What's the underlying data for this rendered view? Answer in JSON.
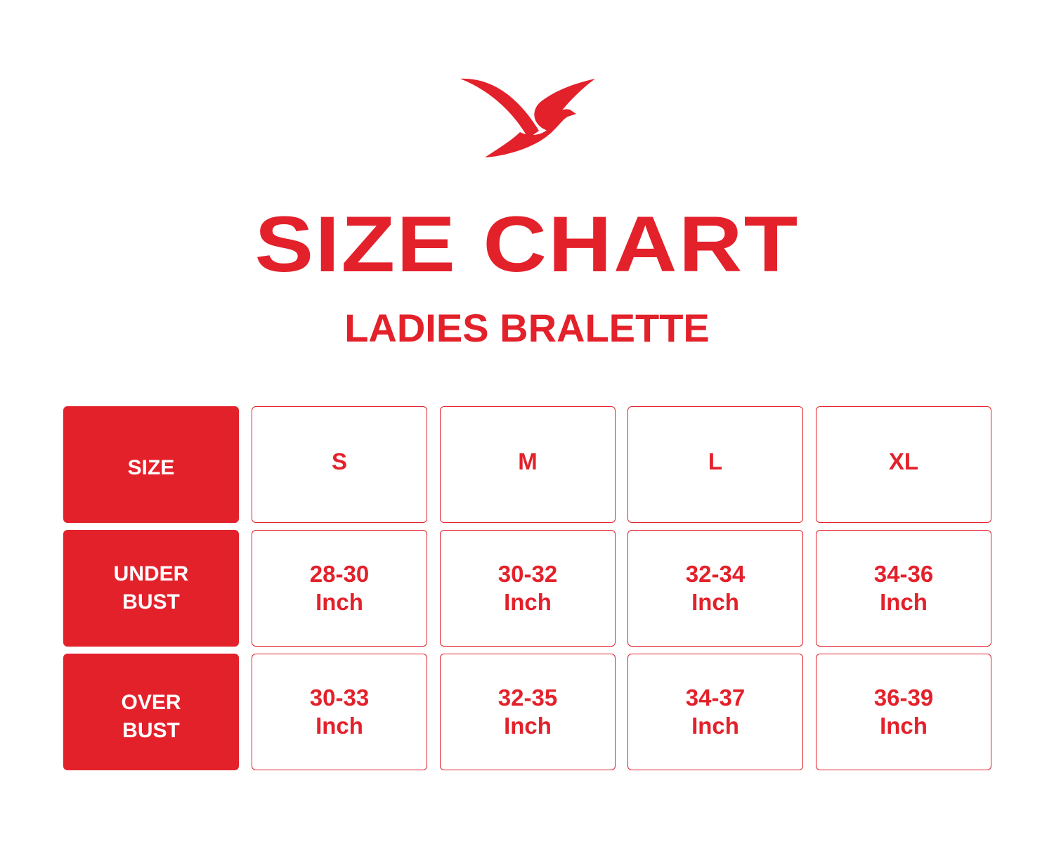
{
  "brand_color": "#e3212b",
  "logo": {
    "icon": "bird-logo"
  },
  "title": "SIZE CHART",
  "subtitle": "LADIES BRALETTE",
  "table": {
    "row_headers": [
      [
        "SIZE"
      ],
      [
        "UNDER",
        "BUST"
      ],
      [
        "OVER",
        "BUST"
      ]
    ],
    "sizes": [
      "S",
      "M",
      "L",
      "XL"
    ],
    "under_bust": [
      [
        "28-30",
        "Inch"
      ],
      [
        "30-32",
        "Inch"
      ],
      [
        "32-34",
        "Inch"
      ],
      [
        "34-36",
        "Inch"
      ]
    ],
    "over_bust": [
      [
        "30-33",
        "Inch"
      ],
      [
        "32-35",
        "Inch"
      ],
      [
        "34-37",
        "Inch"
      ],
      [
        "36-39",
        "Inch"
      ]
    ]
  }
}
